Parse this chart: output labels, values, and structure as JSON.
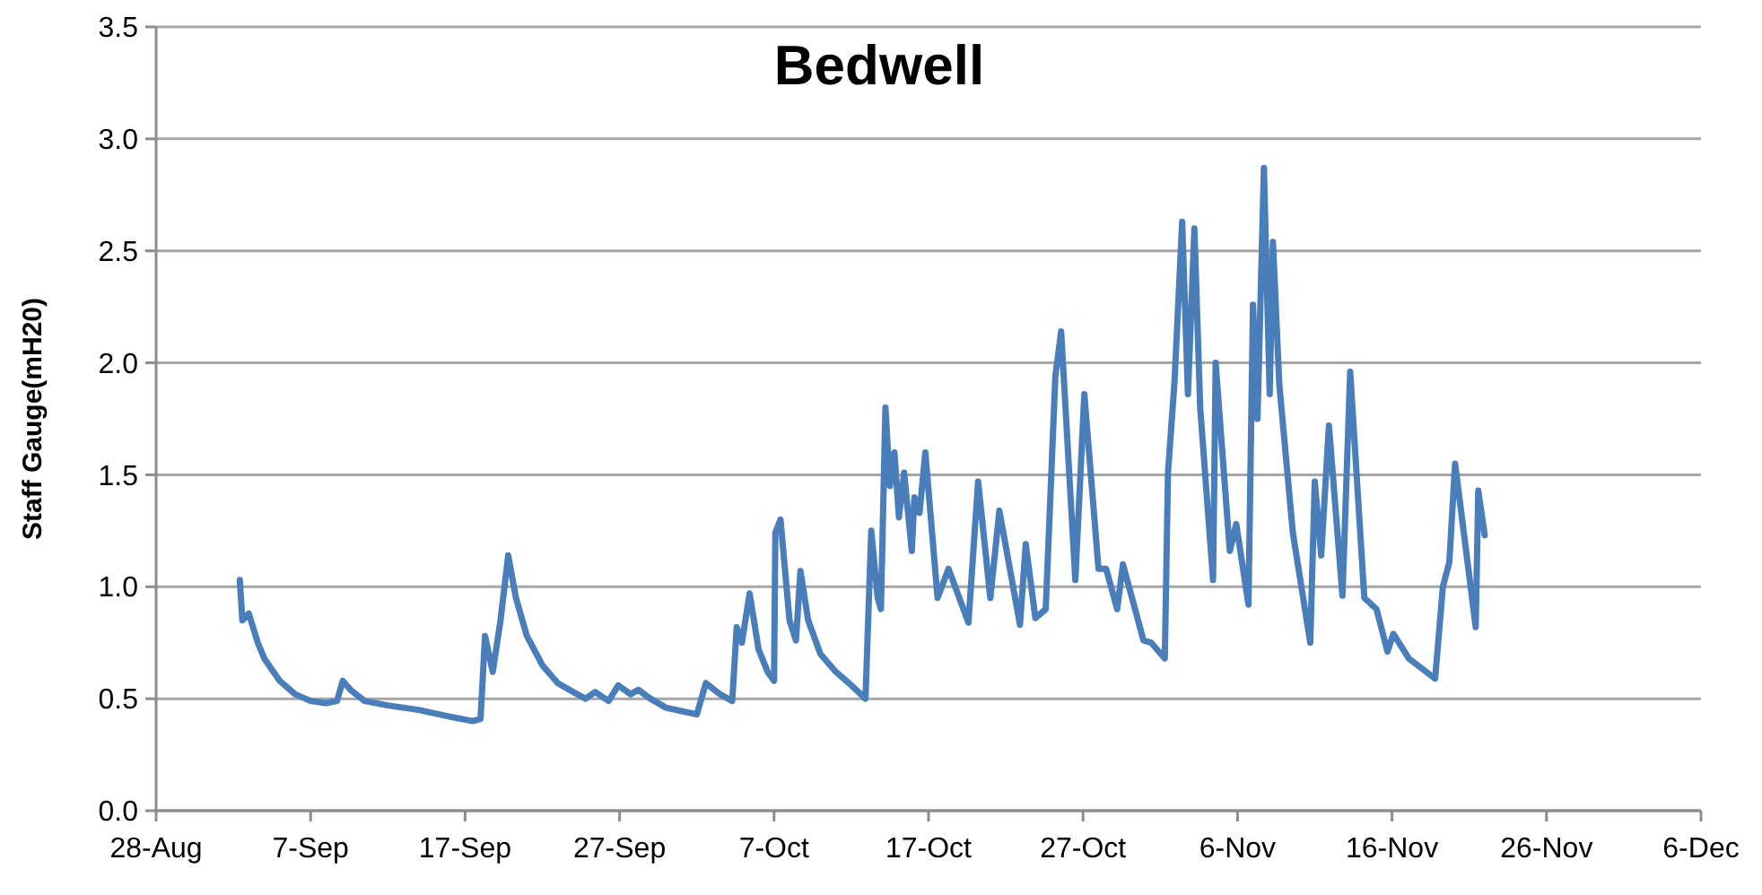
{
  "chart_data": {
    "type": "line",
    "title": "Bedwell",
    "ylabel": "Staff Gauge(mH20)",
    "xlim": [
      "--08-28",
      "--12-06"
    ],
    "xticks": [
      {
        "value": "--08-28",
        "label": "28-Aug"
      },
      {
        "value": "--09-07",
        "label": "7-Sep"
      },
      {
        "value": "--09-17",
        "label": "17-Sep"
      },
      {
        "value": "--09-27",
        "label": "27-Sep"
      },
      {
        "value": "--10-07",
        "label": "7-Oct"
      },
      {
        "value": "--10-17",
        "label": "17-Oct"
      },
      {
        "value": "--10-27",
        "label": "27-Oct"
      },
      {
        "value": "--11-06",
        "label": "6-Nov"
      },
      {
        "value": "--11-16",
        "label": "16-Nov"
      },
      {
        "value": "--11-26",
        "label": "26-Nov"
      },
      {
        "value": "--12-06",
        "label": "6-Dec"
      }
    ],
    "ylim": [
      0,
      3.5
    ],
    "yticks": [
      {
        "value": 0,
        "label": "0.0"
      },
      {
        "value": 0.5,
        "label": "0.5"
      },
      {
        "value": 1,
        "label": "1.0"
      },
      {
        "value": 1.5,
        "label": "1.5"
      },
      {
        "value": 2,
        "label": "2.0"
      },
      {
        "value": 2.5,
        "label": "2.5"
      },
      {
        "value": 3,
        "label": "3.0"
      },
      {
        "value": 3.5,
        "label": "3.5"
      }
    ],
    "grid": "y",
    "marker": "none",
    "line_style": "solid",
    "series": [
      {
        "color": "#4a7ebb",
        "x": [
          "--09-02T10:00",
          "--09-02T14:00",
          "--09-03T00:00",
          "--09-03T14:00",
          "--09-04T00:00",
          "--09-05T00:00",
          "--09-06T00:00",
          "--09-07T00:00",
          "--09-08T00:00",
          "--09-08T17:00",
          "--09-09T02:00",
          "--09-09T14:00",
          "--09-10T12:00",
          "--09-12T00:00",
          "--09-14T00:00",
          "--09-16T00:00",
          "--09-17T12:00",
          "--09-18T00:00",
          "--09-18T07:00",
          "--09-18T19:00",
          "--09-19T07:00",
          "--09-19T19:00",
          "--09-20T07:00",
          "--09-21T00:00",
          "--09-22T00:00",
          "--09-23T00:00",
          "--09-24T00:00",
          "--09-24T19:00",
          "--09-25T10:00",
          "--09-26T07:00",
          "--09-26T22:00",
          "--09-27T17:00",
          "--09-28T05:00",
          "--09-29T00:00",
          "--09-30T00:00",
          "--10-02T00:00",
          "--10-02T14:00",
          "--10-03T12:00",
          "--10-04T07:00",
          "--10-04T14:00",
          "--10-04T22:00",
          "--10-05T10:00",
          "--10-06T00:00",
          "--10-06T14:00",
          "--10-07T00:00",
          "--10-07T02:00",
          "--10-07T10:00",
          "--10-08T00:00",
          "--10-08T10:00",
          "--10-08T17:00",
          "--10-09T05:00",
          "--10-10T00:00",
          "--10-11T00:00",
          "--10-12T00:00",
          "--10-12T22:00",
          "--10-13T07:00",
          "--10-13T17:00",
          "--10-13T22:00",
          "--10-14T05:00",
          "--10-14T12:00",
          "--10-14T19:00",
          "--10-15T02:00",
          "--10-15T10:00",
          "--10-15T22:00",
          "--10-16T02:00",
          "--10-16T10:00",
          "--10-16T19:00",
          "--10-17T14:00",
          "--10-18T07:00",
          "--10-19T14:00",
          "--10-20T05:00",
          "--10-21T00:00",
          "--10-21T14:00",
          "--10-22T22:00",
          "--10-23T07:00",
          "--10-23T22:00",
          "--10-24T14:00",
          "--10-25T05:00",
          "--10-25T14:00",
          "--10-26T12:00",
          "--10-27T02:00",
          "--10-28T00:00",
          "--10-28T12:00",
          "--10-29T05:00",
          "--10-29T14:00",
          "--10-30T22:00",
          "--10-31T10:00",
          "--11-01T07:00",
          "--11-01T12:00",
          "--11-01T22:00",
          "--11-02T10:00",
          "--11-02T19:00",
          "--11-03T05:00",
          "--11-03T14:00",
          "--11-04T10:00",
          "--11-04T14:00",
          "--11-05T02:00",
          "--11-05T12:00",
          "--11-05T22:00",
          "--11-06T17:00",
          "--11-07T00:00",
          "--11-07T07:00",
          "--11-07T17:00",
          "--11-08T02:00",
          "--11-08T07:00",
          "--11-08T17:00",
          "--11-09T14:00",
          "--11-10T17:00",
          "--11-11T00:00",
          "--11-11T10:00",
          "--11-11T22:00",
          "--11-12T19:00",
          "--11-13T07:00",
          "--11-14T05:00",
          "--11-15T00:00",
          "--11-15T17:00",
          "--11-16T02:00",
          "--11-17T02:00",
          "--11-18T19:00",
          "--11-19T07:00",
          "--11-19T17:00",
          "--11-20T02:00",
          "--11-21T10:00",
          "--11-21T14:00",
          "--11-22T00:00"
        ],
        "values": [
          1.03,
          0.85,
          0.88,
          0.75,
          0.68,
          0.58,
          0.52,
          0.49,
          0.48,
          0.49,
          0.58,
          0.54,
          0.49,
          0.47,
          0.45,
          0.42,
          0.4,
          0.41,
          0.78,
          0.62,
          0.85,
          1.14,
          0.95,
          0.78,
          0.65,
          0.57,
          0.53,
          0.5,
          0.53,
          0.49,
          0.56,
          0.52,
          0.54,
          0.5,
          0.46,
          0.43,
          0.57,
          0.52,
          0.49,
          0.82,
          0.75,
          0.97,
          0.72,
          0.62,
          0.58,
          1.24,
          1.3,
          0.85,
          0.76,
          1.07,
          0.85,
          0.7,
          0.62,
          0.56,
          0.5,
          1.25,
          0.95,
          0.9,
          1.8,
          1.45,
          1.6,
          1.31,
          1.51,
          1.16,
          1.4,
          1.33,
          1.6,
          0.95,
          1.08,
          0.84,
          1.47,
          0.95,
          1.34,
          0.83,
          1.19,
          0.86,
          0.9,
          1.94,
          2.14,
          1.03,
          1.86,
          1.08,
          1.08,
          0.9,
          1.1,
          0.76,
          0.75,
          0.68,
          1.51,
          1.91,
          2.63,
          1.86,
          2.6,
          1.8,
          1.03,
          2.0,
          1.54,
          1.16,
          1.28,
          0.92,
          2.26,
          1.75,
          2.87,
          1.86,
          2.54,
          1.9,
          1.24,
          0.75,
          1.47,
          1.14,
          1.72,
          0.96,
          1.96,
          0.95,
          0.9,
          0.71,
          0.79,
          0.68,
          0.59,
          1.0,
          1.11,
          1.55,
          0.82,
          1.43,
          1.23
        ]
      }
    ]
  }
}
